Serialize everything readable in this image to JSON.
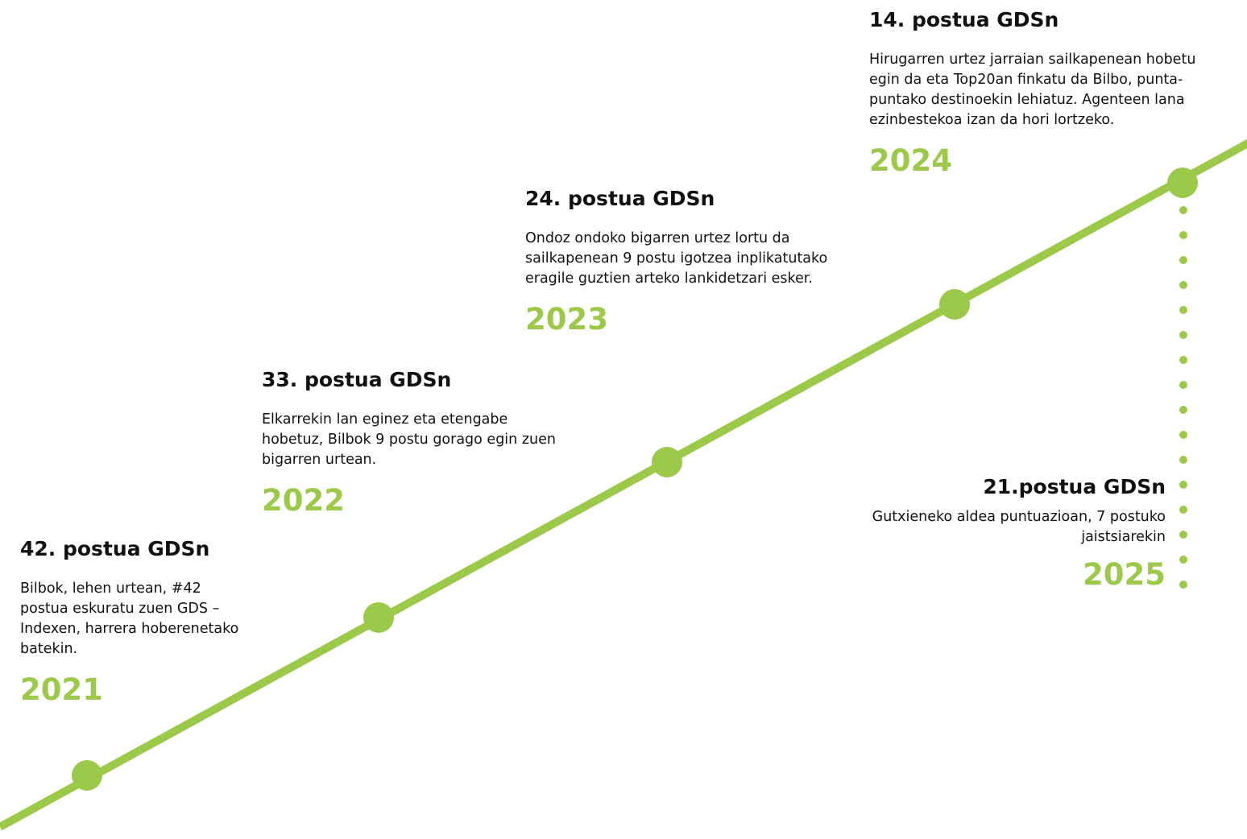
{
  "milestones": [
    {
      "title": "42. postua GDSn",
      "text": "Bilbok, lehen urtean, #42 postua eskuratu zuen GDS –Indexen, harrera hoberenetako batekin.",
      "year": "2021"
    },
    {
      "title": "33. postua GDSn",
      "text": "Elkarrekin lan eginez eta etengabe hobetuz, Bilbok 9 postu gorago egin zuen bigarren urtean.",
      "year": "2022"
    },
    {
      "title": "24. postua GDSn",
      "text": "Ondoz ondoko bigarren urtez lortu da sailkapenean 9 postu igotzea inplikatutako eragile guztien arteko lankidetzari esker.",
      "year": "2023"
    },
    {
      "title": "14. postua GDSn",
      "text": "Hirugarren urtez jarraian sailkapenean hobetu egin da eta Top20an finkatu da Bilbo, punta-puntako destinoekin lehiatuz. Agenteen lana ezinbestekoa izan da hori lortzeko.",
      "year": "2024"
    },
    {
      "title": "21.postua GDSn",
      "text": "Gutxieneko aldea puntuazioan, 7 postuko jaistsiarekin",
      "year": "2025"
    }
  ]
}
